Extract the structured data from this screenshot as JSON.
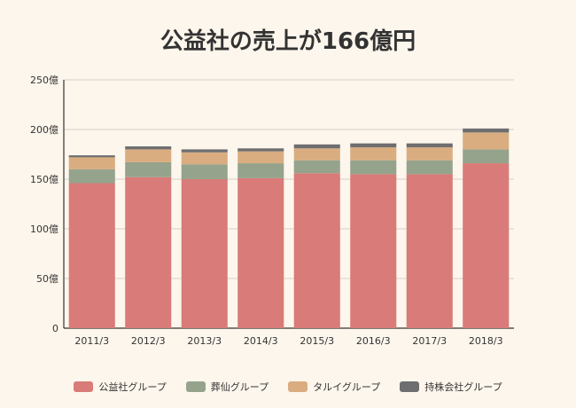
{
  "chart_data": {
    "type": "bar",
    "stacked": true,
    "title": "公益社の売上が166億円",
    "categories": [
      "2011/3",
      "2012/3",
      "2013/3",
      "2014/3",
      "2015/3",
      "2016/3",
      "2017/3",
      "2018/3"
    ],
    "y_ticks": [
      "0",
      "50億",
      "100億",
      "150億",
      "200億",
      "250億"
    ],
    "ylim": [
      0,
      250
    ],
    "series": [
      {
        "name": "公益社グループ",
        "color": "#d97b78",
        "values": [
          146,
          152,
          150,
          151,
          156,
          155,
          155,
          166
        ]
      },
      {
        "name": "葬仙グループ",
        "color": "#95a38c",
        "values": [
          14,
          15,
          15,
          15,
          13,
          14,
          14,
          14
        ]
      },
      {
        "name": "タルイグループ",
        "color": "#d9ad80",
        "values": [
          12,
          13,
          12,
          12,
          12,
          13,
          13,
          17
        ]
      },
      {
        "name": "持株会社グループ",
        "color": "#6e6e70",
        "values": [
          2,
          3,
          3,
          3,
          4,
          4,
          4,
          4
        ]
      }
    ]
  }
}
